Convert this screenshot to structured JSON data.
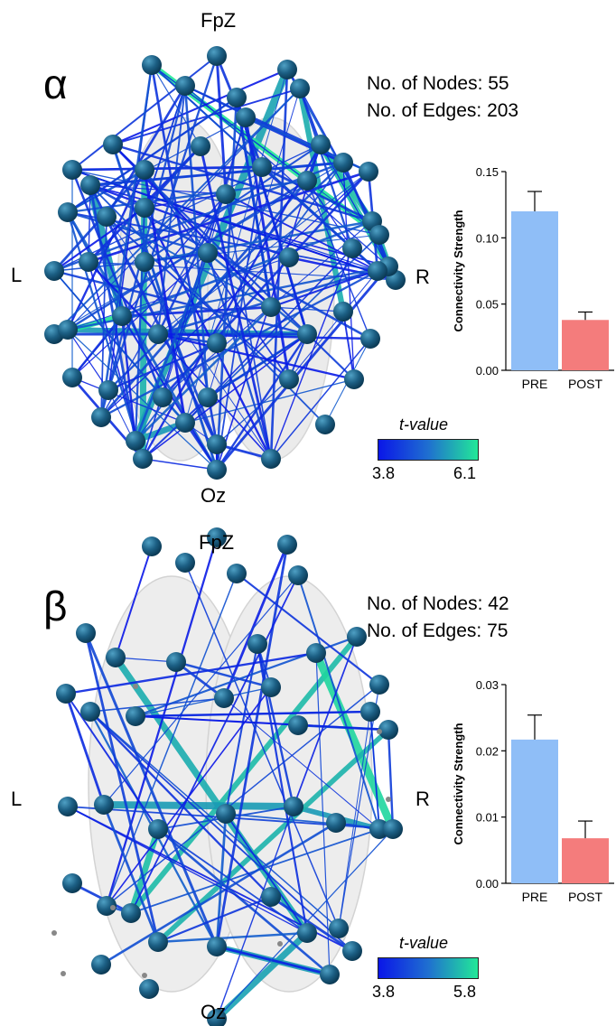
{
  "colors": {
    "pre": "#8fbef7",
    "post": "#f47c7c",
    "node": "#1c5f84",
    "edge_low": "#0a16e8",
    "edge_high": "#22e898"
  },
  "panels": [
    {
      "band": "α",
      "labels": {
        "top": "FpZ",
        "bottom": "Oz",
        "left": "L",
        "right": "R"
      },
      "nodes_text": "No. of Nodes: 55",
      "edges_text": "No. of Edges: 203",
      "colorbar": {
        "title": "t-value",
        "min": "3.8",
        "max": "6.1"
      }
    },
    {
      "band": "β",
      "labels": {
        "top": "FpZ",
        "bottom": "Oz",
        "left": "L",
        "right": "R"
      },
      "nodes_text": "No. of Nodes: 42",
      "edges_text": "No. of Edges: 75",
      "colorbar": {
        "title": "t-value",
        "min": "3.8",
        "max": "5.8"
      }
    }
  ],
  "chart_data": [
    {
      "type": "bar",
      "categories": [
        "PRE",
        "POST"
      ],
      "values": [
        0.12,
        0.038
      ],
      "errors": [
        0.015,
        0.006
      ],
      "ylabel": "Connectivity Strength",
      "ylim": [
        0,
        0.15
      ],
      "yticks": [
        "0.00",
        "0.05",
        "0.10",
        "0.15"
      ]
    },
    {
      "type": "bar",
      "categories": [
        "PRE",
        "POST"
      ],
      "values": [
        0.0217,
        0.0068
      ],
      "errors": [
        0.0037,
        0.0026
      ],
      "ylabel": "Connectivity Strength",
      "ylim": [
        0,
        0.03
      ],
      "yticks": [
        "0.00",
        "0.01",
        "0.02",
        "0.03"
      ]
    }
  ]
}
